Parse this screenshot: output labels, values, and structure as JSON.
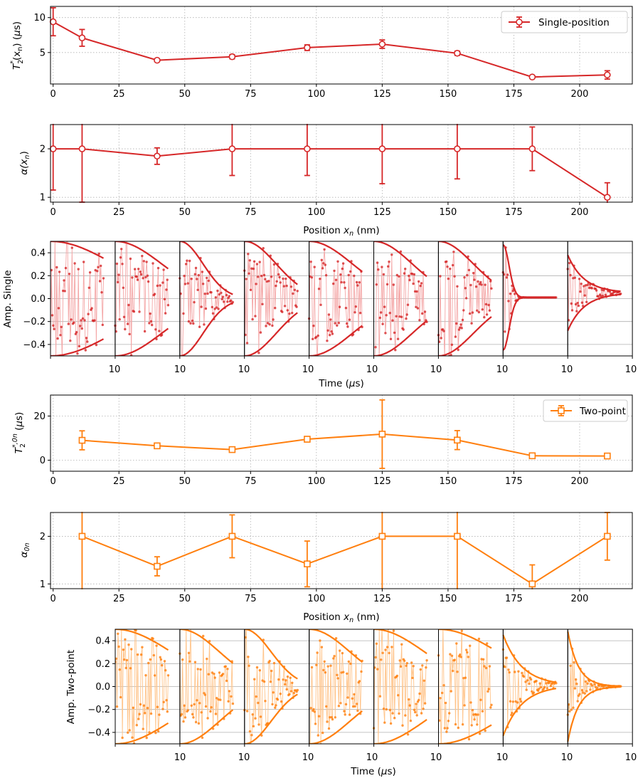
{
  "colors": {
    "single": "#d62728",
    "two": "#ff7f0e",
    "single_light": "#f4a6a6",
    "two_light": "#ffc48a"
  },
  "labels": {
    "position": [
      "Position ",
      "x",
      "n",
      " (nm)"
    ],
    "time": [
      "Time (",
      "μ",
      "s)"
    ],
    "t2_single": [
      "T",
      "2",
      "*",
      "(x",
      "n",
      ") (",
      "μ",
      "s)"
    ],
    "alpha_single": [
      "α(x",
      "n",
      ")"
    ],
    "amp_single": "Amp. Single",
    "t2_two": [
      "T",
      "2",
      "*,0n",
      " (",
      "μ",
      "s)"
    ],
    "alpha_two": [
      "α",
      "0n"
    ],
    "amp_two": "Amp. Two-point"
  },
  "legend": {
    "single": "Single-position",
    "two": "Two-point"
  },
  "time_tick_left": "10",
  "time_tick_right": "10",
  "chart_data": [
    {
      "type": "line",
      "name": "T2* single-position",
      "x": [
        0,
        11,
        39.5,
        68,
        96.5,
        125,
        153.5,
        182,
        210.5
      ],
      "values": [
        9.4,
        7.1,
        3.9,
        4.4,
        5.7,
        6.2,
        4.9,
        1.5,
        1.8
      ],
      "errors": [
        2.0,
        1.2,
        0.2,
        0.3,
        0.4,
        0.6,
        0.3,
        0.2,
        0.6
      ],
      "xlim": [
        -1,
        220
      ],
      "ylim": [
        0.5,
        11.6
      ],
      "xticks": [
        0,
        25,
        50,
        75,
        100,
        125,
        150,
        175,
        200
      ],
      "yticks": [
        5,
        10
      ],
      "legend": "Single-position",
      "legend_position": "top-right"
    },
    {
      "type": "line",
      "name": "alpha single-position",
      "x": [
        0,
        11,
        39.5,
        68,
        96.5,
        125,
        153.5,
        182,
        210.5
      ],
      "values": [
        2.0,
        2.0,
        1.85,
        2.0,
        2.0,
        2.0,
        2.0,
        2.0,
        1.0
      ],
      "errors": [
        0.85,
        1.1,
        0.17,
        0.55,
        0.55,
        0.72,
        0.62,
        0.45,
        0.3
      ],
      "xlim": [
        -1,
        220
      ],
      "ylim": [
        0.9,
        2.5
      ],
      "xticks": [
        0,
        25,
        50,
        75,
        100,
        125,
        150,
        175,
        200
      ],
      "yticks": [
        1,
        2
      ],
      "xlabel": "Position x_n (nm)"
    },
    {
      "type": "line",
      "name": "Amp. Single",
      "panels": 9,
      "ylim": [
        -0.5,
        0.5
      ],
      "yticks": [
        -0.4,
        -0.2,
        0.0,
        0.2,
        0.4
      ],
      "ytick_labels": [
        "−0.4",
        "−0.2",
        "0.0",
        "0.2",
        "0.4"
      ],
      "envelope": [
        {
          "a0": 0.5,
          "decay": "gauss",
          "k": 0.35
        },
        {
          "a0": 0.5,
          "decay": "gauss",
          "k": 0.65
        },
        {
          "a0": 0.5,
          "decay": "gauss",
          "k": 2.6
        },
        {
          "a0": 0.5,
          "decay": "gauss",
          "k": 1.4
        },
        {
          "a0": 0.5,
          "decay": "gauss",
          "k": 0.75
        },
        {
          "a0": 0.5,
          "decay": "gauss",
          "k": 0.95
        },
        {
          "a0": 0.5,
          "decay": "gauss",
          "k": 1.15
        },
        {
          "a0": 0.47,
          "decay": "gauss",
          "k": 40,
          "offset": 0.01
        },
        {
          "a0": 0.38,
          "decay": "exp",
          "k": 3.2,
          "offset": 0.05
        }
      ],
      "xlabel": "Time (μs)"
    },
    {
      "type": "line",
      "name": "T2* two-point",
      "x": [
        11,
        39.5,
        68,
        96.5,
        125,
        153.5,
        182,
        210.5
      ],
      "values": [
        9.0,
        6.5,
        4.8,
        9.5,
        11.8,
        9.1,
        2.0,
        1.9
      ],
      "errors": [
        4.3,
        0.8,
        0.6,
        1.2,
        15.5,
        4.3,
        0.5,
        0.5
      ],
      "xlim": [
        -1,
        220
      ],
      "ylim": [
        -5,
        29.5
      ],
      "xticks": [
        0,
        25,
        50,
        75,
        100,
        125,
        150,
        175,
        200
      ],
      "yticks": [
        0,
        20
      ],
      "legend": "Two-point",
      "legend_position": "top-right"
    },
    {
      "type": "line",
      "name": "alpha two-point",
      "x": [
        11,
        39.5,
        68,
        96.5,
        125,
        153.5,
        182,
        210.5
      ],
      "values": [
        2.0,
        1.37,
        2.0,
        1.42,
        2.0,
        2.0,
        1.0,
        2.0
      ],
      "errors": [
        1.2,
        0.2,
        0.45,
        0.48,
        1.2,
        1.2,
        0.4,
        0.5
      ],
      "xlim": [
        -1,
        220
      ],
      "ylim": [
        0.9,
        2.5
      ],
      "xticks": [
        0,
        25,
        50,
        75,
        100,
        125,
        150,
        175,
        200
      ],
      "yticks": [
        1,
        2
      ],
      "xlabel": "Position x_n (nm)"
    },
    {
      "type": "line",
      "name": "Amp. Two-point",
      "panels": 8,
      "ylim": [
        -0.5,
        0.5
      ],
      "yticks": [
        -0.4,
        -0.2,
        0.0,
        0.2,
        0.4
      ],
      "ytick_labels": [
        "−0.4",
        "−0.2",
        "0.0",
        "0.2",
        "0.4"
      ],
      "envelope": [
        {
          "a0": 0.5,
          "decay": "gauss",
          "k": 0.45
        },
        {
          "a0": 0.5,
          "decay": "gauss",
          "k": 0.9
        },
        {
          "a0": 0.5,
          "decay": "gauss",
          "k": 2.0
        },
        {
          "a0": 0.5,
          "decay": "gauss",
          "k": 0.85
        },
        {
          "a0": 0.5,
          "decay": "gauss",
          "k": 0.55
        },
        {
          "a0": 0.5,
          "decay": "gauss",
          "k": 0.4
        },
        {
          "a0": 0.45,
          "decay": "exp",
          "k": 2.8,
          "offset": 0.01
        },
        {
          "a0": 0.48,
          "decay": "exp",
          "k": 5.0,
          "offset": 0.0
        }
      ],
      "xlabel": "Time (μs)"
    }
  ]
}
